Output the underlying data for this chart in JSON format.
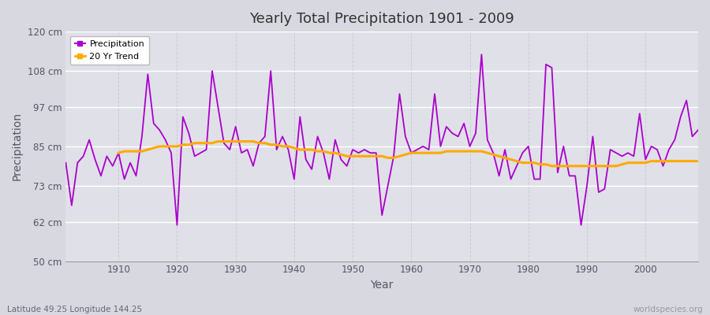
{
  "title": "Yearly Total Precipitation 1901 - 2009",
  "xlabel": "Year",
  "ylabel": "Precipitation",
  "subtitle": "Latitude 49.25 Longitude 144.25",
  "watermark": "worldspecies.org",
  "years": [
    1901,
    1902,
    1903,
    1904,
    1905,
    1906,
    1907,
    1908,
    1909,
    1910,
    1911,
    1912,
    1913,
    1914,
    1915,
    1916,
    1917,
    1918,
    1919,
    1920,
    1921,
    1922,
    1923,
    1924,
    1925,
    1926,
    1927,
    1928,
    1929,
    1930,
    1931,
    1932,
    1933,
    1934,
    1935,
    1936,
    1937,
    1938,
    1939,
    1940,
    1941,
    1942,
    1943,
    1944,
    1945,
    1946,
    1947,
    1948,
    1949,
    1950,
    1951,
    1952,
    1953,
    1954,
    1955,
    1956,
    1957,
    1958,
    1959,
    1960,
    1961,
    1962,
    1963,
    1964,
    1965,
    1966,
    1967,
    1968,
    1969,
    1970,
    1971,
    1972,
    1973,
    1974,
    1975,
    1976,
    1977,
    1978,
    1979,
    1980,
    1981,
    1982,
    1983,
    1984,
    1985,
    1986,
    1987,
    1988,
    1989,
    1990,
    1991,
    1992,
    1993,
    1994,
    1995,
    1996,
    1997,
    1998,
    1999,
    2000,
    2001,
    2002,
    2003,
    2004,
    2005,
    2006,
    2007,
    2008,
    2009
  ],
  "precip": [
    80,
    67,
    80,
    82,
    87,
    81,
    76,
    82,
    79,
    83,
    75,
    80,
    76,
    88,
    107,
    92,
    90,
    87,
    83,
    61,
    94,
    89,
    82,
    83,
    84,
    108,
    97,
    86,
    84,
    91,
    83,
    84,
    79,
    86,
    88,
    108,
    84,
    88,
    84,
    75,
    94,
    81,
    78,
    88,
    83,
    75,
    87,
    81,
    79,
    84,
    83,
    84,
    83,
    83,
    64,
    73,
    82,
    101,
    88,
    83,
    84,
    85,
    84,
    101,
    85,
    91,
    89,
    88,
    92,
    85,
    89,
    113,
    87,
    83,
    76,
    84,
    75,
    79,
    83,
    85,
    75,
    75,
    110,
    109,
    77,
    85,
    76,
    76,
    61,
    73,
    88,
    71,
    72,
    84,
    83,
    82,
    83,
    82,
    95,
    81,
    85,
    84,
    79,
    84,
    87,
    94,
    99,
    88,
    90
  ],
  "trend": [
    null,
    null,
    null,
    null,
    null,
    null,
    null,
    null,
    null,
    83,
    83.5,
    83.5,
    83.5,
    83.5,
    84,
    84.5,
    85,
    85,
    85,
    85,
    85.5,
    85.5,
    86,
    86,
    86,
    86,
    86.5,
    86.5,
    86.5,
    86.5,
    86.5,
    86.5,
    86.5,
    86,
    86,
    85.5,
    85.5,
    85,
    85,
    84.5,
    84,
    84,
    84,
    83.5,
    83.5,
    83,
    83,
    82.5,
    82,
    82,
    82,
    82,
    82,
    82,
    82,
    81.5,
    81.5,
    82,
    82.5,
    83,
    83,
    83,
    83,
    83,
    83,
    83.5,
    83.5,
    83.5,
    83.5,
    83.5,
    83.5,
    83.5,
    83,
    82.5,
    82,
    81.5,
    81,
    80.5,
    80,
    80,
    80,
    79.5,
    79.5,
    79,
    79,
    79,
    79,
    79,
    79,
    79,
    79,
    79,
    79,
    79,
    79,
    79.5,
    80,
    80,
    80,
    80,
    80.5,
    80.5,
    80.5,
    80.5,
    80.5,
    80.5,
    80.5,
    80.5,
    80.5
  ],
  "precip_color": "#aa00cc",
  "trend_color": "#ffaa00",
  "outer_bg_color": "#d8d8e0",
  "plot_bg_color": "#e0e0e8",
  "grid_color_h": "#ffffff",
  "grid_color_v": "#ccccdd",
  "yticks": [
    50,
    62,
    73,
    85,
    97,
    108,
    120
  ],
  "ytick_labels": [
    "50 cm",
    "62 cm",
    "73 cm",
    "85 cm",
    "97 cm",
    "108 cm",
    "120 cm"
  ],
  "xticks": [
    1910,
    1920,
    1930,
    1940,
    1950,
    1960,
    1970,
    1980,
    1990,
    2000
  ],
  "ylim": [
    50,
    120
  ],
  "xlim": [
    1901,
    2009
  ]
}
